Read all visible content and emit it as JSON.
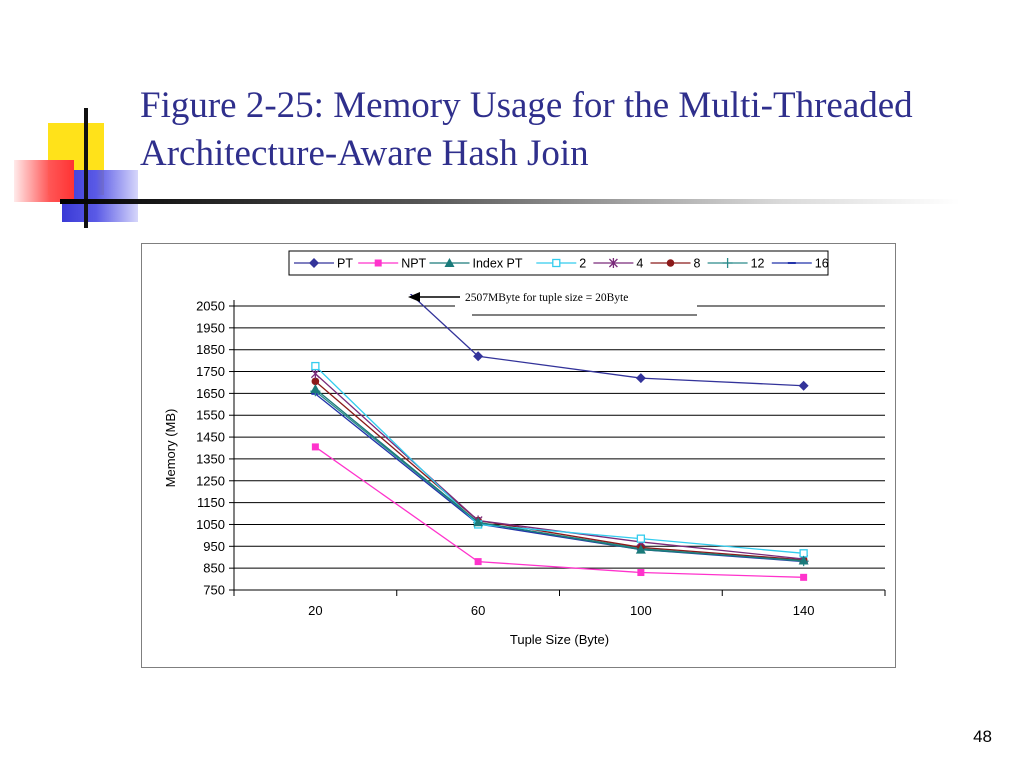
{
  "slide": {
    "title": "Figure 2-25: Memory Usage for the Multi-Threaded Architecture-Aware Hash Join",
    "page_number": "48"
  },
  "chart_data": {
    "type": "line",
    "title": "",
    "xlabel": "Tuple Size (Byte)",
    "ylabel": "Memory (MB)",
    "categories": [
      "20",
      "60",
      "100",
      "140"
    ],
    "y_ticks": [
      750,
      850,
      950,
      1050,
      1150,
      1250,
      1350,
      1450,
      1550,
      1650,
      1750,
      1850,
      1950,
      2050
    ],
    "ylim": [
      750,
      2050
    ],
    "grid": true,
    "legend_position": "top",
    "annotation": "2507MByte for tuple size = 20Byte",
    "series": [
      {
        "name": "PT",
        "values": [
          2507,
          1820,
          1720,
          1685
        ],
        "color": "#33339a",
        "marker": "diamond"
      },
      {
        "name": "NPT",
        "values": [
          1405,
          880,
          830,
          808
        ],
        "color": "#ff33cc",
        "marker": "square"
      },
      {
        "name": "Index PT",
        "values": [
          1670,
          1060,
          935,
          885
        ],
        "color": "#1a7a7a",
        "marker": "triangle"
      },
      {
        "name": "2",
        "values": [
          1775,
          1050,
          985,
          918
        ],
        "color": "#33ccee",
        "marker": "open-square"
      },
      {
        "name": "4",
        "values": [
          1740,
          1068,
          970,
          892
        ],
        "color": "#7a2a7a",
        "marker": "star"
      },
      {
        "name": "8",
        "values": [
          1705,
          1068,
          945,
          888
        ],
        "color": "#8b1a1a",
        "marker": "circle"
      },
      {
        "name": "12",
        "values": [
          1660,
          1058,
          940,
          882
        ],
        "color": "#2a8a8a",
        "marker": "plus"
      },
      {
        "name": "16",
        "values": [
          1648,
          1052,
          935,
          880
        ],
        "color": "#2233aa",
        "marker": "dash"
      }
    ]
  }
}
